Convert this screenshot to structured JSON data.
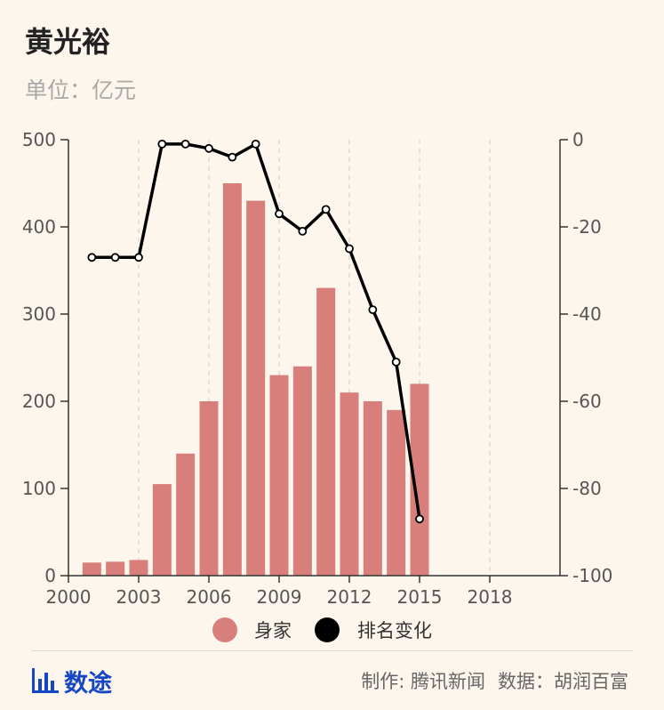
{
  "header": {
    "title": "黄光裕",
    "subtitle": "单位：亿元"
  },
  "footer": {
    "brand": "数途",
    "credit_maker": "制作: 腾讯新闻",
    "credit_source": "数据：胡润百富"
  },
  "colors": {
    "bar": "#d87f7b",
    "line": "#000000",
    "brand": "#1546c4"
  },
  "icons": {
    "brand": "bar-chart-icon"
  },
  "chart_data": {
    "type": "bar",
    "x_ticks": [
      "2000",
      "2003",
      "2006",
      "2009",
      "2012",
      "2015",
      "2018"
    ],
    "xlim": [
      2000,
      2021
    ],
    "left_axis": {
      "ticks": [
        "0",
        "100",
        "200",
        "300",
        "400",
        "500"
      ],
      "ylim": [
        0,
        500
      ]
    },
    "right_axis": {
      "ticks": [
        "0",
        "-20",
        "-40",
        "-60",
        "-80",
        "-100"
      ],
      "ylim": [
        -100,
        0
      ]
    },
    "grid": "vertical dashed",
    "legend_position": "bottom",
    "series": [
      {
        "name": "身家",
        "type": "bar",
        "axis": "left",
        "x": [
          2001,
          2002,
          2003,
          2004,
          2005,
          2006,
          2007,
          2008,
          2009,
          2010,
          2011,
          2012,
          2013,
          2014,
          2015
        ],
        "values": [
          15,
          16,
          18,
          105,
          140,
          200,
          450,
          430,
          230,
          240,
          330,
          210,
          200,
          190,
          220
        ]
      },
      {
        "name": "排名变化",
        "type": "line",
        "axis": "right",
        "x": [
          2001,
          2002,
          2003,
          2004,
          2005,
          2006,
          2007,
          2008,
          2009,
          2010,
          2011,
          2012,
          2013,
          2014,
          2015
        ],
        "values": [
          -27,
          -27,
          -27,
          -1,
          -1,
          -2,
          -4,
          -1,
          -17,
          -21,
          -16,
          -25,
          -39,
          -51,
          -87
        ]
      }
    ]
  }
}
